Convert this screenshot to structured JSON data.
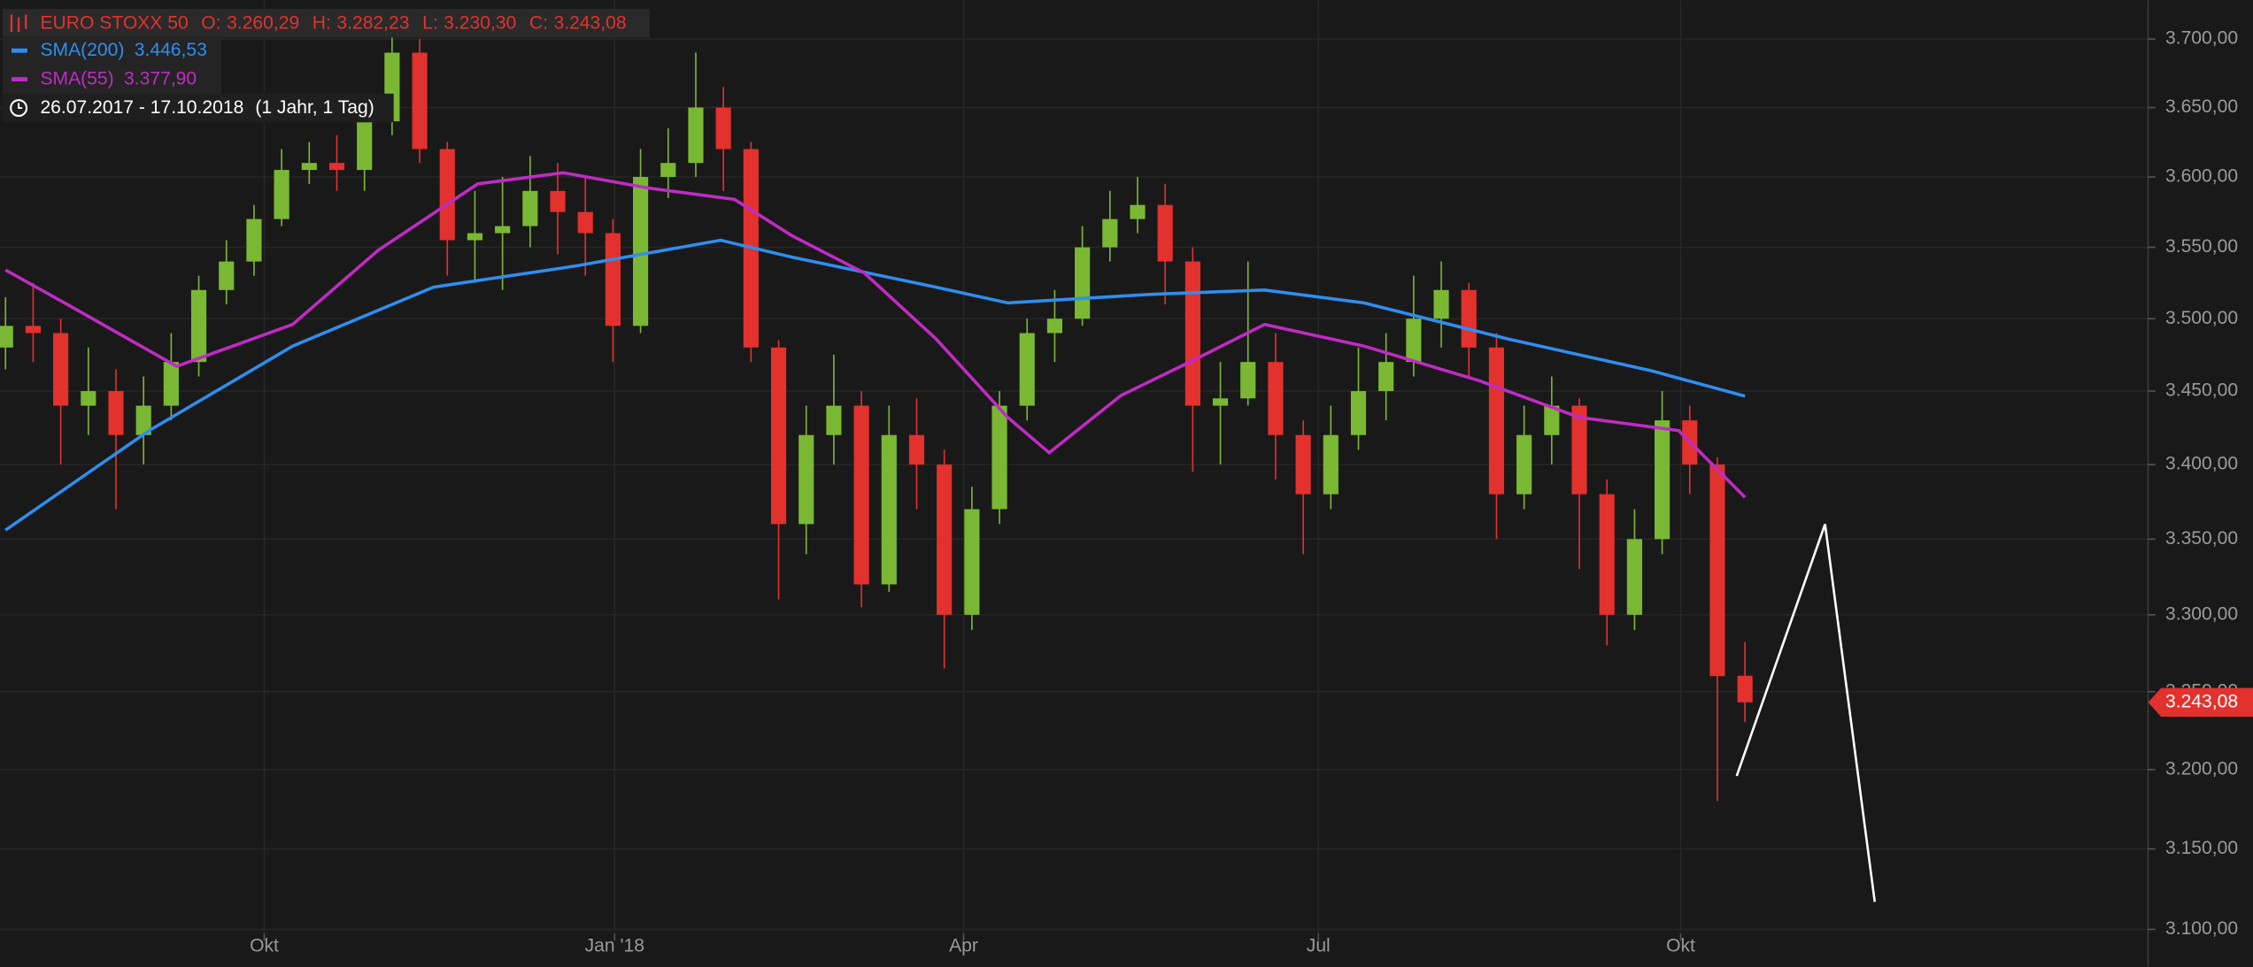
{
  "chart_data": {
    "type": "candlestick",
    "instrument": "EURO STOXX 50",
    "ohlc_legend": [
      {
        "key": "O:",
        "label": "3.260,29"
      },
      {
        "key": "H:",
        "label": "3.282,23"
      },
      {
        "key": "L:",
        "label": "3.230,30"
      },
      {
        "key": "C:",
        "label": "3.243,08"
      }
    ],
    "date_range": "26.07.2017 - 17.10.2018",
    "period": "(1 Jahr, 1 Tag)",
    "log_scale": true,
    "grid": true,
    "background": "#1a1919",
    "up_color": "#7ab834",
    "down_color": "#e3312d",
    "last_price_label": "3.243,08",
    "x": [
      0,
      1,
      2,
      3,
      4,
      5,
      6,
      7,
      8,
      9,
      10,
      11,
      12,
      13,
      14,
      15,
      16,
      17,
      18,
      19,
      20,
      21,
      22,
      23,
      24,
      25,
      26,
      27,
      28,
      29,
      30,
      31,
      32,
      33,
      34,
      35,
      36,
      37,
      38,
      39,
      40,
      41,
      42,
      43,
      44,
      45,
      46,
      47,
      48,
      49,
      50,
      51,
      52,
      53,
      54,
      55,
      56,
      57,
      58,
      59,
      60,
      61,
      62,
      63
    ],
    "open": [
      3480,
      3495,
      3490,
      3440,
      3450,
      3420,
      3440,
      3470,
      3520,
      3540,
      3570,
      3605,
      3610,
      3605,
      3640,
      3690,
      3620,
      3555,
      3560,
      3565,
      3590,
      3575,
      3560,
      3495,
      3600,
      3610,
      3650,
      3620,
      3480,
      3360,
      3420,
      3440,
      3320,
      3420,
      3400,
      3300,
      3370,
      3440,
      3490,
      3500,
      3550,
      3570,
      3580,
      3540,
      3440,
      3445,
      3470,
      3420,
      3380,
      3420,
      3450,
      3470,
      3500,
      3520,
      3480,
      3380,
      3420,
      3440,
      3380,
      3300,
      3350,
      3430,
      3400,
      3260.29
    ],
    "high": [
      3515,
      3525,
      3500,
      3480,
      3465,
      3460,
      3490,
      3530,
      3555,
      3580,
      3620,
      3625,
      3630,
      3660,
      3705,
      3700,
      3625,
      3590,
      3600,
      3615,
      3610,
      3600,
      3570,
      3620,
      3635,
      3690,
      3665,
      3625,
      3485,
      3440,
      3475,
      3450,
      3440,
      3445,
      3410,
      3385,
      3450,
      3500,
      3520,
      3565,
      3590,
      3600,
      3595,
      3550,
      3470,
      3540,
      3490,
      3430,
      3440,
      3480,
      3490,
      3530,
      3540,
      3525,
      3490,
      3440,
      3460,
      3445,
      3390,
      3370,
      3450,
      3440,
      3405,
      3282.23
    ],
    "low": [
      3465,
      3470,
      3400,
      3420,
      3370,
      3400,
      3430,
      3460,
      3510,
      3530,
      3565,
      3595,
      3590,
      3590,
      3630,
      3610,
      3530,
      3525,
      3520,
      3550,
      3545,
      3530,
      3470,
      3490,
      3585,
      3600,
      3590,
      3470,
      3310,
      3340,
      3400,
      3305,
      3315,
      3370,
      3265,
      3290,
      3360,
      3430,
      3470,
      3495,
      3540,
      3560,
      3510,
      3395,
      3400,
      3440,
      3390,
      3340,
      3370,
      3410,
      3430,
      3460,
      3480,
      3460,
      3350,
      3370,
      3400,
      3330,
      3280,
      3290,
      3340,
      3380,
      3180,
      3230.3
    ],
    "close": [
      3495,
      3490,
      3440,
      3450,
      3420,
      3440,
      3470,
      3520,
      3540,
      3570,
      3605,
      3610,
      3605,
      3640,
      3690,
      3620,
      3555,
      3560,
      3565,
      3590,
      3575,
      3560,
      3495,
      3600,
      3610,
      3650,
      3620,
      3480,
      3360,
      3420,
      3440,
      3320,
      3420,
      3400,
      3300,
      3370,
      3440,
      3490,
      3500,
      3550,
      3570,
      3580,
      3540,
      3440,
      3445,
      3470,
      3420,
      3380,
      3420,
      3450,
      3470,
      3500,
      3520,
      3480,
      3380,
      3420,
      3440,
      3380,
      3300,
      3350,
      3430,
      3400,
      3260,
      3243.08
    ],
    "overlays": [
      {
        "name": "SMA(200)",
        "value_label": "3.446,53",
        "color": "#2e8ef0",
        "x": [
          0,
          5.2,
          10.4,
          15.5,
          20.7,
          25.9,
          28.5,
          33.7,
          36.3,
          41.5,
          45.6,
          49.2,
          54.4,
          59.6,
          63
        ],
        "values": [
          3356,
          3423,
          3481,
          3522,
          3537,
          3555,
          3543,
          3522,
          3511,
          3517,
          3520,
          3511,
          3486,
          3464,
          3446.53
        ]
      },
      {
        "name": "SMA(55)",
        "value_label": "3.377,90",
        "color": "#c02bc4",
        "x": [
          0,
          2.6,
          6.2,
          10.4,
          13.5,
          17.1,
          20.2,
          23.3,
          26.4,
          28.5,
          31.1,
          33.7,
          36.3,
          37.8,
          40.4,
          43,
          45.6,
          49.2,
          53.4,
          57,
          60.6,
          63
        ],
        "values": [
          3534,
          3506,
          3467,
          3496,
          3548,
          3595,
          3603,
          3592,
          3584,
          3558,
          3532,
          3486,
          3432,
          3408,
          3447,
          3471,
          3496,
          3481,
          3457,
          3432,
          3423,
          3377.9
        ]
      }
    ],
    "drawing": {
      "color": "#ffffff",
      "x": [
        62.7,
        65.9,
        67.7
      ],
      "values": [
        3196,
        3360,
        3117
      ]
    },
    "xlim": [
      -0.2,
      77.6
    ],
    "ylim": [
      3100,
      3700
    ],
    "xticks": [
      {
        "value": 9.37,
        "label": "Okt"
      },
      {
        "value": 22.06,
        "label": "Jan '18"
      },
      {
        "value": 34.7,
        "label": "Apr"
      },
      {
        "value": 47.55,
        "label": "Jul"
      },
      {
        "value": 60.67,
        "label": "Okt"
      }
    ],
    "yticks": [
      {
        "value": 3100,
        "label": "3.100,00"
      },
      {
        "value": 3150,
        "label": "3.150,00"
      },
      {
        "value": 3200,
        "label": "3.200,00"
      },
      {
        "value": 3250,
        "label": "3.250,00"
      },
      {
        "value": 3300,
        "label": "3.300,00"
      },
      {
        "value": 3350,
        "label": "3.350,00"
      },
      {
        "value": 3400,
        "label": "3.400,00"
      },
      {
        "value": 3450,
        "label": "3.450,00"
      },
      {
        "value": 3500,
        "label": "3.500,00"
      },
      {
        "value": 3550,
        "label": "3.550,00"
      },
      {
        "value": 3600,
        "label": "3.600,00"
      },
      {
        "value": 3650,
        "label": "3.650,00"
      },
      {
        "value": 3700,
        "label": "3.700,00"
      }
    ]
  }
}
